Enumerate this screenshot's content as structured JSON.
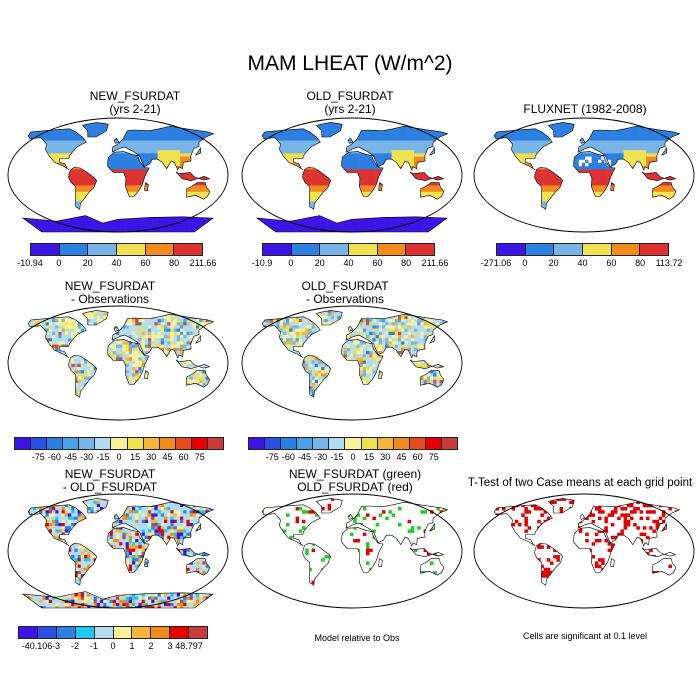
{
  "title": "MAM LHEAT (W/m^2)",
  "panels": {
    "new_fsurdat": {
      "line1": "NEW_FSURDAT",
      "line2": "(yrs 2-21)"
    },
    "old_fsurdat": {
      "line1": "OLD_FSURDAT",
      "line2": "(yrs 2-21)"
    },
    "fluxnet": {
      "line1": "FLUXNET (1982-2008)"
    },
    "new_minus_obs": {
      "line1": "NEW_FSURDAT",
      "line2": "- Observations"
    },
    "old_minus_obs": {
      "line1": "OLD_FSURDAT",
      "line2": "- Observations"
    },
    "new_minus_old": {
      "line1": "NEW_FSURDAT",
      "line2": "- OLD_FSURDAT"
    },
    "green_red": {
      "line1": "NEW_FSURDAT (green)",
      "line2": "OLD_FSURDAT (red)"
    },
    "ttest": {
      "line1": "T-Test of two Case means at each grid point"
    }
  },
  "notes": {
    "model_relative": "Model relative to Obs",
    "significance": "Cells are significant at 0.1 level"
  },
  "colorbars": {
    "new": {
      "colors": [
        "#3c14e6",
        "#2d7fe0",
        "#78b4e6",
        "#f0e150",
        "#f08c1e",
        "#dc3232"
      ],
      "labels": [
        "-10.94",
        "0",
        "20",
        "40",
        "60",
        "80",
        "211.66"
      ]
    },
    "old": {
      "colors": [
        "#3c14e6",
        "#2d7fe0",
        "#78b4e6",
        "#f0e150",
        "#f08c1e",
        "#dc3232"
      ],
      "labels": [
        "-10.9",
        "0",
        "20",
        "40",
        "60",
        "80",
        "211.66"
      ]
    },
    "flux": {
      "colors": [
        "#3c14e6",
        "#2d7fe0",
        "#78b4e6",
        "#f0e150",
        "#f08c1e",
        "#dc3232"
      ],
      "labels": [
        "-271.06",
        "0",
        "20",
        "40",
        "60",
        "80",
        "113.72"
      ]
    },
    "diff1": {
      "colors": [
        "#3c14e6",
        "#2a50e6",
        "#2d7fe0",
        "#4ba0e6",
        "#78b4e6",
        "#b4dcf0",
        "#f7f29a",
        "#f0e150",
        "#f5b43c",
        "#f08c1e",
        "#e64b1e",
        "#e60000",
        "#c83c3c"
      ],
      "labels": [
        "-75",
        "-60",
        "-45",
        "-30",
        "-15",
        "0",
        "15",
        "30",
        "45",
        "60",
        "75"
      ]
    },
    "diff2": {
      "colors": [
        "#3c14e6",
        "#2a50e6",
        "#2d7fe0",
        "#4ba0e6",
        "#78b4e6",
        "#b4dcf0",
        "#f7f29a",
        "#f0e150",
        "#f5b43c",
        "#f08c1e",
        "#e64b1e",
        "#e60000",
        "#c83c3c"
      ],
      "labels": [
        "-75",
        "-60",
        "-45",
        "-30",
        "-15",
        "0",
        "15",
        "30",
        "45",
        "60",
        "75"
      ]
    },
    "diff3": {
      "colors": [
        "#3c14e6",
        "#2a50e6",
        "#2d7fe0",
        "#1ec8f0",
        "#b4dcf0",
        "#f7f29a",
        "#f5b43c",
        "#f08c1e",
        "#e60000",
        "#c83c3c"
      ],
      "labels": [
        "-40.106",
        "-3",
        "-2",
        "-1",
        "0",
        "1",
        "2",
        "3",
        "48.797"
      ]
    }
  }
}
